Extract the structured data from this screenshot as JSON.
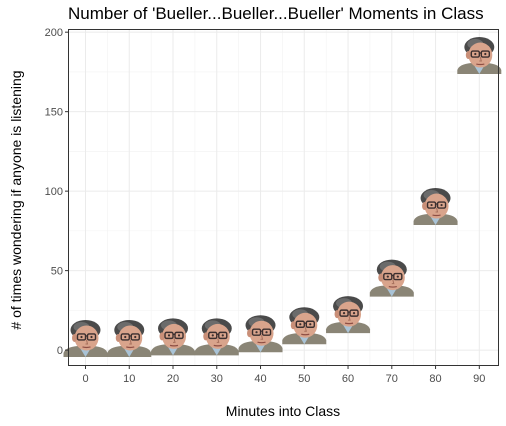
{
  "chart_data": {
    "type": "scatter",
    "title": "Number of 'Bueller...Bueller...Bueller' Moments in Class",
    "xlabel": "Minutes into Class",
    "ylabel": "# of times wondering if anyone is listening",
    "x_ticks": [
      0,
      10,
      20,
      30,
      40,
      50,
      60,
      70,
      80,
      90
    ],
    "y_ticks": [
      0,
      50,
      100,
      150,
      200
    ],
    "xlim": [
      -4,
      94.5
    ],
    "ylim": [
      -10,
      202
    ],
    "grid": true,
    "marker": "face-image",
    "series": [
      {
        "x": [
          0,
          10,
          20,
          30,
          40,
          50,
          60,
          70,
          80,
          90
        ],
        "y": [
          7,
          7,
          8,
          8,
          10,
          15,
          22,
          45,
          90,
          185
        ]
      }
    ]
  }
}
